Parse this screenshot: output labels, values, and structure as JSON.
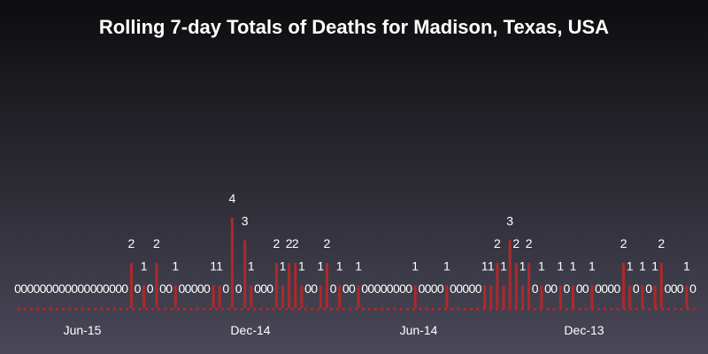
{
  "chart_data": {
    "type": "bar",
    "title": "Rolling 7-day Totals of Deaths for Madison, Texas, USA",
    "xlabel": "",
    "ylabel": "",
    "x_order": "descending (newest on the left)",
    "x_tick_labels": [
      "Jun-15",
      "Dec-14",
      "Jun-14",
      "Dec-13"
    ],
    "values": [
      0,
      0,
      0,
      0,
      0,
      0,
      0,
      0,
      0,
      0,
      0,
      0,
      0,
      0,
      0,
      0,
      0,
      0,
      2,
      0,
      1,
      0,
      2,
      0,
      0,
      1,
      0,
      0,
      0,
      0,
      0,
      1,
      1,
      0,
      4,
      0,
      3,
      1,
      0,
      0,
      0,
      2,
      1,
      2,
      2,
      1,
      0,
      0,
      1,
      2,
      0,
      1,
      0,
      0,
      1,
      0,
      0,
      0,
      0,
      0,
      0,
      0,
      0,
      1,
      0,
      0,
      0,
      0,
      1,
      0,
      0,
      0,
      0,
      0,
      1,
      1,
      2,
      1,
      3,
      2,
      1,
      2,
      0,
      1,
      0,
      0,
      1,
      0,
      1,
      0,
      0,
      1,
      0,
      0,
      0,
      0,
      2,
      1,
      0,
      1,
      0,
      1,
      2,
      0,
      0,
      0,
      1,
      0
    ],
    "bar_color": "#b0282a",
    "zero_marker_color": "#cc2222",
    "data_labels": true,
    "grid": false,
    "legend": "none"
  }
}
